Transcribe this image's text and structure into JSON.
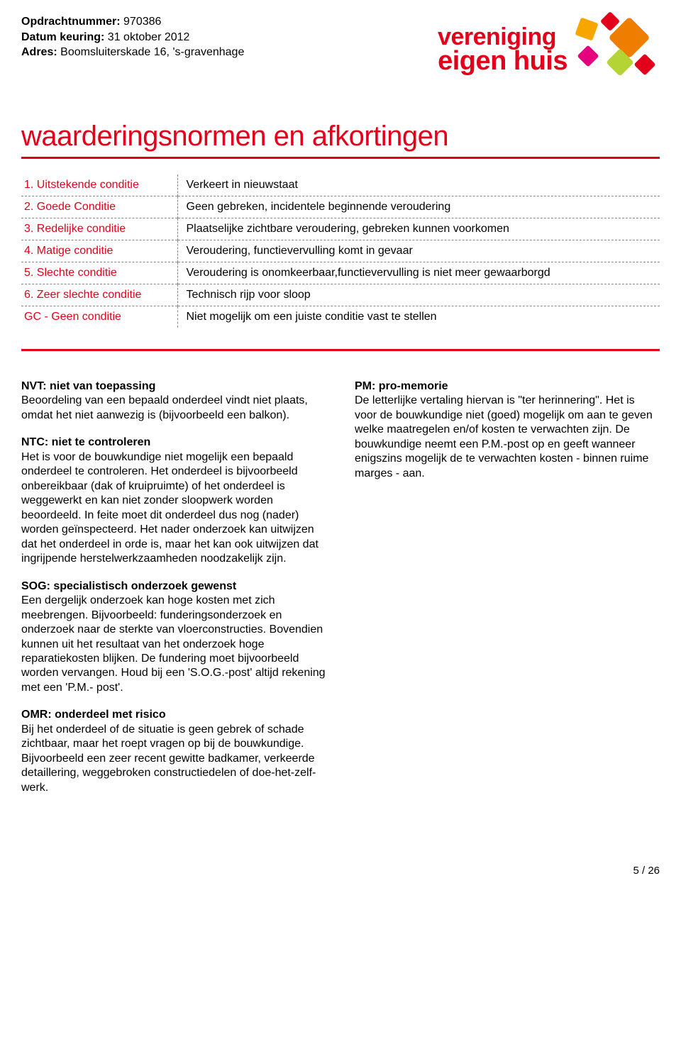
{
  "meta": {
    "opdrachtnummer_label": "Opdrachtnummer:",
    "opdrachtnummer_value": "970386",
    "datum_label": "Datum keuring:",
    "datum_value": "31 oktober 2012",
    "adres_label": "Adres:",
    "adres_value": "Boomsluiterskade 16, 's-gravenhage"
  },
  "logo": {
    "line1": "vereniging",
    "line2": "eigen huis",
    "color_primary": "#e2001a",
    "shape_colors": [
      "#f7a600",
      "#e2001a",
      "#ef7d00",
      "#e5007d",
      "#b4d334",
      "#e2001a"
    ]
  },
  "title": "waarderingsnormen en afkortingen",
  "rule_color": "#e2001a",
  "condition_table": {
    "rows": [
      {
        "left": "1. Uitstekende conditie",
        "right": "Verkeert in nieuwstaat"
      },
      {
        "left": "2. Goede Conditie",
        "right": "Geen gebreken, incidentele beginnende veroudering"
      },
      {
        "left": "3. Redelijke conditie",
        "right": "Plaatselijke zichtbare veroudering, gebreken kunnen voorkomen"
      },
      {
        "left": "4. Matige conditie",
        "right": "Veroudering, functievervulling komt in gevaar"
      },
      {
        "left": "5. Slechte conditie",
        "right": "Veroudering is onomkeerbaar,functievervulling is niet meer gewaarborgd"
      },
      {
        "left": "6. Zeer slechte conditie",
        "right": "Technisch rijp voor sloop"
      },
      {
        "left": "GC - Geen conditie",
        "right": "Niet mogelijk om een juiste conditie vast te stellen"
      }
    ],
    "left_text_color": "#e2001a",
    "dash_color": "#888888"
  },
  "definitions": {
    "left_column": [
      {
        "term": "NVT: niet van toepassing",
        "body": "Beoordeling van een bepaald onderdeel vindt niet plaats, omdat het niet aanwezig is (bijvoorbeeld een balkon)."
      },
      {
        "term": "NTC: niet te controleren",
        "body": "Het is voor de bouwkundige niet mogelijk een bepaald onderdeel te controleren. Het onderdeel is bijvoorbeeld onbereikbaar (dak of kruipruimte) of het onderdeel is weggewerkt en kan niet zonder sloopwerk worden beoordeeld. In feite moet dit onderdeel dus nog (nader) worden geïnspecteerd. Het nader onderzoek kan uitwijzen dat het onderdeel in orde is, maar het kan ook uitwijzen dat ingrijpende herstelwerkzaamheden noodzakelijk zijn."
      },
      {
        "term": "SOG: specialistisch onderzoek gewenst",
        "body": "Een dergelijk onderzoek kan hoge kosten met zich meebrengen. Bijvoorbeeld: funderingsonderzoek en onderzoek naar de sterkte van vloerconstructies. Bovendien kunnen uit het resultaat van het onderzoek hoge reparatiekosten blijken. De fundering moet bijvoorbeeld worden vervangen. Houd bij een 'S.O.G.-post' altijd rekening met een 'P.M.- post'."
      },
      {
        "term": "OMR: onderdeel met risico",
        "body": "Bij het onderdeel of de situatie is geen gebrek of schade zichtbaar, maar het roept vragen op bij de bouwkundige. Bijvoorbeeld een zeer recent gewitte badkamer, verkeerde detaillering, weggebroken constructiedelen of doe-het-zelf-werk."
      }
    ],
    "right_column": [
      {
        "term": "PM: pro-memorie",
        "body": "De letterlijke vertaling hiervan is \"ter herinnering\". Het is voor de bouwkundige niet (goed) mogelijk om aan te geven welke maatregelen en/of kosten te verwachten zijn. De bouwkundige neemt een P.M.-post op en geeft wanneer enigszins mogelijk de te verwachten kosten - binnen ruime marges - aan."
      }
    ]
  },
  "footer": {
    "page": "5 / 26"
  }
}
